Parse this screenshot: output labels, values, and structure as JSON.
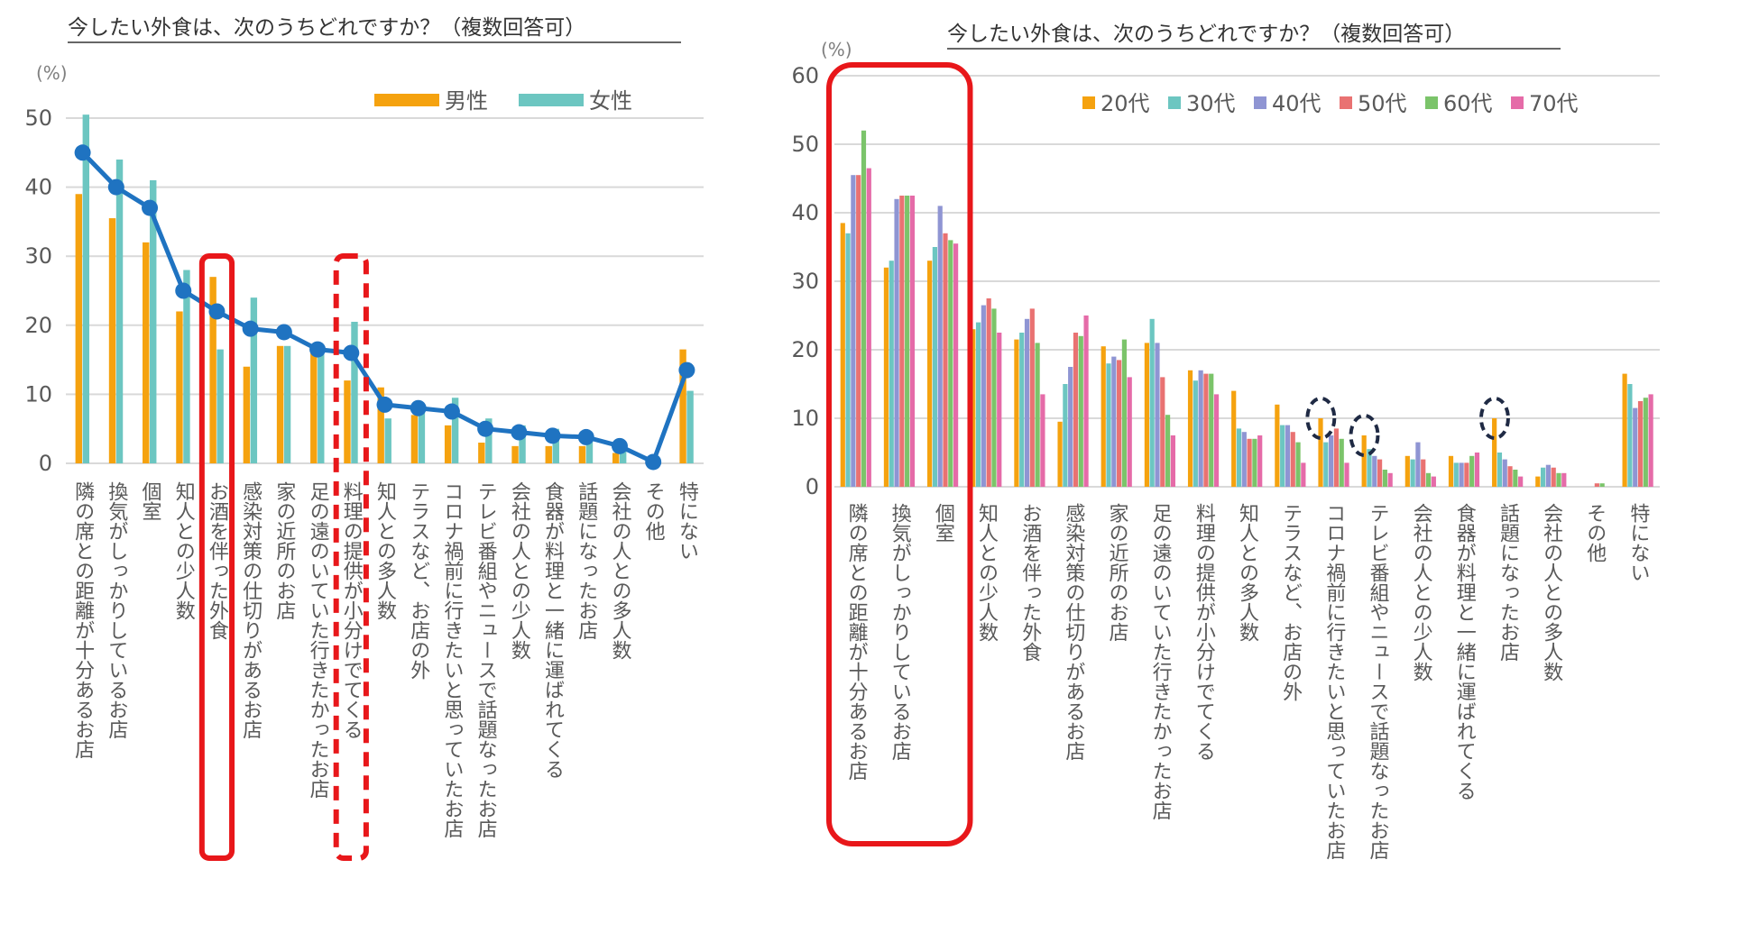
{
  "chart_data": [
    {
      "type": "bar",
      "title": "今したい外食は、次のうちどれですか？（複数回答可）",
      "unit": "(%)",
      "ylim": [
        0,
        50
      ],
      "yticks": [
        0,
        10,
        20,
        30,
        40,
        50
      ],
      "grid": true,
      "legend_position": "top-right",
      "categories": [
        "隣の席との距離が十分あるお店",
        "換気がしっかりしているお店",
        "個室",
        "知人との少人数",
        "お酒を伴った外食",
        "感染対策の仕切りがあるお店",
        "家の近所のお店",
        "足の遠のいていた行きたかったお店",
        "料理の提供が小分けでてくる",
        "知人との多人数",
        "テラスなど、お店の外",
        "コロナ禍前に行きたいと思っていたお店",
        "テレビ番組やニュースで話題なったお店",
        "会社の人との少人数",
        "食器が料理と一緒に運ばれてくる",
        "話題になったお店",
        "会社の人との多人数",
        "その他",
        "特にない"
      ],
      "series": [
        {
          "name": "男性",
          "color": "#F5A20F",
          "values": [
            39,
            35.5,
            32,
            22,
            27,
            14,
            17,
            16,
            12,
            11,
            7,
            5.5,
            3,
            2.5,
            2.5,
            2.5,
            1.5,
            0,
            16.5
          ]
        },
        {
          "name": "女性",
          "color": "#6CC6C1",
          "values": [
            50.5,
            44,
            41,
            28,
            16.5,
            24,
            17,
            16,
            20.5,
            6.5,
            8.5,
            9.5,
            6.5,
            5.5,
            5,
            4.5,
            2.5,
            0,
            10.5
          ]
        }
      ],
      "line": {
        "color": "#1F73C1",
        "values": [
          45,
          40,
          37,
          25,
          22,
          19.5,
          19,
          16.5,
          16,
          8.5,
          8,
          7.5,
          5,
          4.5,
          4,
          3.8,
          2.5,
          0.2,
          13.5
        ]
      },
      "highlights": [
        {
          "category_index": 4,
          "style": "solid"
        },
        {
          "category_index": 8,
          "style": "dashed"
        }
      ]
    },
    {
      "type": "bar",
      "title": "今したい外食は、次のうちどれですか？（複数回答可）",
      "unit": "(%)",
      "ylim": [
        0,
        60
      ],
      "yticks": [
        0,
        10,
        20,
        30,
        40,
        50,
        60
      ],
      "grid": true,
      "legend_position": "top",
      "categories": [
        "隣の席との距離が十分あるお店",
        "換気がしっかりしているお店",
        "個室",
        "知人との少人数",
        "お酒を伴った外食",
        "感染対策の仕切りがあるお店",
        "家の近所のお店",
        "足の遠のいていた行きたかったお店",
        "料理の提供が小分けでてくる",
        "知人との多人数",
        "テラスなど、お店の外",
        "コロナ禍前に行きたいと思っていたお店",
        "テレビ番組やニュースで話題なったお店",
        "会社の人との少人数",
        "食器が料理と一緒に運ばれてくる",
        "話題になったお店",
        "会社の人との多人数",
        "その他",
        "特にない"
      ],
      "series": [
        {
          "name": "20代",
          "color": "#F5A20F",
          "values": [
            38.5,
            32,
            33,
            23,
            21.5,
            9.5,
            20.5,
            21,
            17,
            14,
            12,
            10,
            7.5,
            4.5,
            4.5,
            10,
            1.5,
            0,
            16.5
          ]
        },
        {
          "name": "30代",
          "color": "#6CC6C1",
          "values": [
            37,
            33,
            35,
            24,
            22.5,
            15,
            18,
            24.5,
            15.5,
            8.5,
            9,
            6.5,
            5.5,
            4,
            3.5,
            5,
            2.8,
            0,
            15
          ]
        },
        {
          "name": "40代",
          "color": "#8F95D3",
          "values": [
            45.5,
            42,
            41,
            26.5,
            24.5,
            17.5,
            19,
            21,
            17,
            8,
            9,
            7.5,
            4.5,
            6.5,
            3.5,
            4,
            3.2,
            0,
            11.5
          ]
        },
        {
          "name": "50代",
          "color": "#E97272",
          "values": [
            45.5,
            42.5,
            37,
            27.5,
            26,
            22.5,
            18.5,
            16,
            16.5,
            7,
            8,
            8.5,
            4,
            4,
            3.5,
            3,
            2.8,
            0.5,
            12.5
          ]
        },
        {
          "name": "60代",
          "color": "#7BC46A",
          "values": [
            52,
            42.5,
            36,
            26,
            21,
            22,
            21.5,
            10.5,
            16.5,
            7,
            6.5,
            7,
            2.5,
            2,
            4.5,
            2.5,
            2,
            0.5,
            13
          ]
        },
        {
          "name": "70代",
          "color": "#E56BA8",
          "values": [
            46.5,
            42.5,
            35.5,
            22.5,
            13.5,
            25,
            16,
            7.5,
            13.5,
            7.5,
            3.5,
            3.5,
            2,
            1.5,
            5,
            1.5,
            2,
            0,
            13.5
          ]
        }
      ],
      "highlights": [
        {
          "category_range": [
            0,
            2
          ],
          "style": "solid"
        },
        {
          "category_index": 11,
          "series_index": 0,
          "style": "dashed-ellipse"
        },
        {
          "category_index": 12,
          "series_index": 0,
          "style": "dashed-ellipse"
        },
        {
          "category_index": 15,
          "series_index": 0,
          "style": "dashed-ellipse"
        }
      ]
    }
  ]
}
